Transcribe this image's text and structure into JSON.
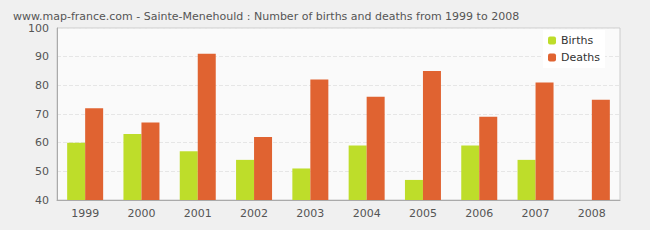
{
  "chart_data": {
    "type": "bar",
    "title": "www.map-france.com - Sainte-Menehould : Number of births and deaths from 1999 to 2008",
    "categories": [
      "1999",
      "2000",
      "2001",
      "2002",
      "2003",
      "2004",
      "2005",
      "2006",
      "2007",
      "2008"
    ],
    "series": [
      {
        "name": "Births",
        "color": "#bedd2a",
        "values": [
          60,
          63,
          57,
          54,
          51,
          59,
          47,
          59,
          54,
          40
        ]
      },
      {
        "name": "Deaths",
        "color": "#e06331",
        "values": [
          72,
          67,
          91,
          62,
          82,
          76,
          85,
          69,
          81,
          75
        ]
      }
    ],
    "ylim": [
      40,
      100
    ],
    "yticks": [
      40,
      50,
      60,
      70,
      80,
      90,
      100
    ],
    "grid": true,
    "legend": "top-right"
  }
}
